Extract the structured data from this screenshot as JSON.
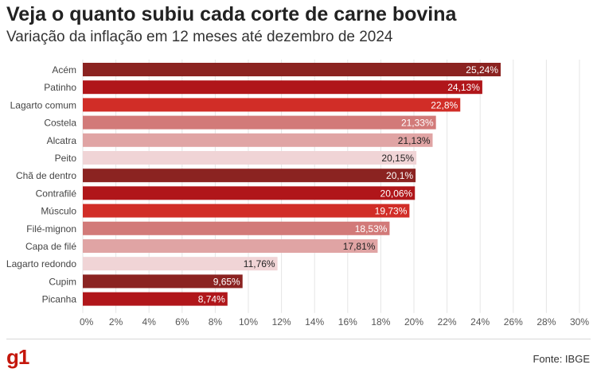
{
  "chart_data": {
    "type": "bar",
    "orientation": "horizontal",
    "title": "Veja o quanto subiu cada corte de carne bovina",
    "subtitle": "Variação da inflação em 12 meses até dezembro de 2024",
    "categories": [
      "Acém",
      "Patinho",
      "Lagarto comum",
      "Costela",
      "Alcatra",
      "Peito",
      "Chã de dentro",
      "Contrafilé",
      "Músculo",
      "Filé-mignon",
      "Capa de filé",
      "Lagarto redondo",
      "Cupim",
      "Picanha"
    ],
    "values": [
      25.24,
      24.13,
      22.8,
      21.33,
      21.13,
      20.15,
      20.1,
      20.06,
      19.73,
      18.53,
      17.81,
      11.76,
      9.65,
      8.74
    ],
    "value_labels": [
      "25,24%",
      "24,13%",
      "22,8%",
      "21,33%",
      "21,13%",
      "20,15%",
      "20,1%",
      "20,06%",
      "19,73%",
      "18,53%",
      "17,81%",
      "11,76%",
      "9,65%",
      "8,74%"
    ],
    "colors": [
      "#8b2321",
      "#b0161a",
      "#d12d27",
      "#d27a79",
      "#e0a4a4",
      "#f0d4d6",
      "#8b2321",
      "#b0161a",
      "#d12d27",
      "#d27a79",
      "#e0a4a4",
      "#f0d4d6",
      "#8b2321",
      "#b0161a"
    ],
    "label_colors": [
      "#ffffff",
      "#ffffff",
      "#ffffff",
      "#ffffff",
      "#222222",
      "#222222",
      "#ffffff",
      "#ffffff",
      "#ffffff",
      "#ffffff",
      "#222222",
      "#222222",
      "#ffffff",
      "#ffffff"
    ],
    "xlim": [
      0,
      30
    ],
    "xticks": [
      0,
      2,
      4,
      6,
      8,
      10,
      12,
      14,
      16,
      18,
      20,
      22,
      24,
      26,
      28,
      30
    ],
    "xtick_labels": [
      "0%",
      "2%",
      "4%",
      "6%",
      "8%",
      "10%",
      "12%",
      "14%",
      "16%",
      "18%",
      "20%",
      "22%",
      "24%",
      "26%",
      "28%",
      "30%"
    ],
    "grid": true,
    "xlabel": "",
    "ylabel": ""
  },
  "footer": {
    "logo": "g1",
    "source": "Fonte: IBGE"
  },
  "colors": {
    "brand": "#c4170c",
    "grid": "#e5e5e5"
  }
}
